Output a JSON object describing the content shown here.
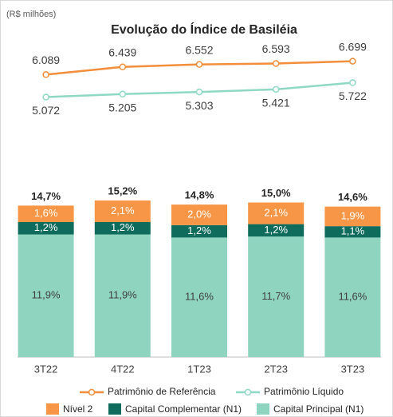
{
  "chart_data": {
    "type": "stacked_bar_line",
    "title": "Evolução do Índice de Basiléia",
    "subtitle": "(R$ milhões)",
    "categories": [
      "3T22",
      "4T22",
      "1T23",
      "2T23",
      "3T23"
    ],
    "ylim": [
      0,
      15
    ],
    "series": [
      {
        "name": "Nível 2",
        "color": "#f79646",
        "text_color": "#ffffff",
        "values": [
          1.6,
          2.1,
          2.0,
          2.1,
          1.9
        ],
        "value_labels": [
          "1,6%",
          "2,1%",
          "2,0%",
          "2,1%",
          "1,9%"
        ]
      },
      {
        "name": "Capital Complementar (N1)",
        "color": "#0f6b5c",
        "text_color": "#ffffff",
        "values": [
          1.2,
          1.2,
          1.2,
          1.2,
          1.1
        ],
        "value_labels": [
          "1,2%",
          "1,2%",
          "1,2%",
          "1,2%",
          "1,1%"
        ]
      },
      {
        "name": "Capital Principal (N1)",
        "color": "#8fd4bf",
        "text_color": "#404040",
        "values": [
          11.9,
          11.9,
          11.6,
          11.7,
          11.6
        ],
        "value_labels": [
          "11,9%",
          "11,9%",
          "11,6%",
          "11,7%",
          "11,6%"
        ]
      }
    ],
    "totals": {
      "values": [
        14.7,
        15.2,
        14.8,
        15.0,
        14.6
      ],
      "value_labels": [
        "14,7%",
        "15,2%",
        "14,8%",
        "15,0%",
        "14,6%"
      ]
    },
    "y2lim": [
      4400,
      7300
    ],
    "lines": [
      {
        "name": "Patrimônio de Referência",
        "color": "#f28e3c",
        "axis": "y2",
        "label_side": "above",
        "values": [
          6089,
          6439,
          6552,
          6593,
          6699
        ],
        "value_labels": [
          "6.089",
          "6.439",
          "6.552",
          "6.593",
          "6.699"
        ]
      },
      {
        "name": "Patrimônio Líquido",
        "color": "#8fd9c4",
        "axis": "y2",
        "label_side": "below",
        "values": [
          5072,
          5205,
          5303,
          5421,
          5722
        ],
        "value_labels": [
          "5.072",
          "5.205",
          "5.303",
          "5.421",
          "5.722"
        ]
      }
    ]
  }
}
